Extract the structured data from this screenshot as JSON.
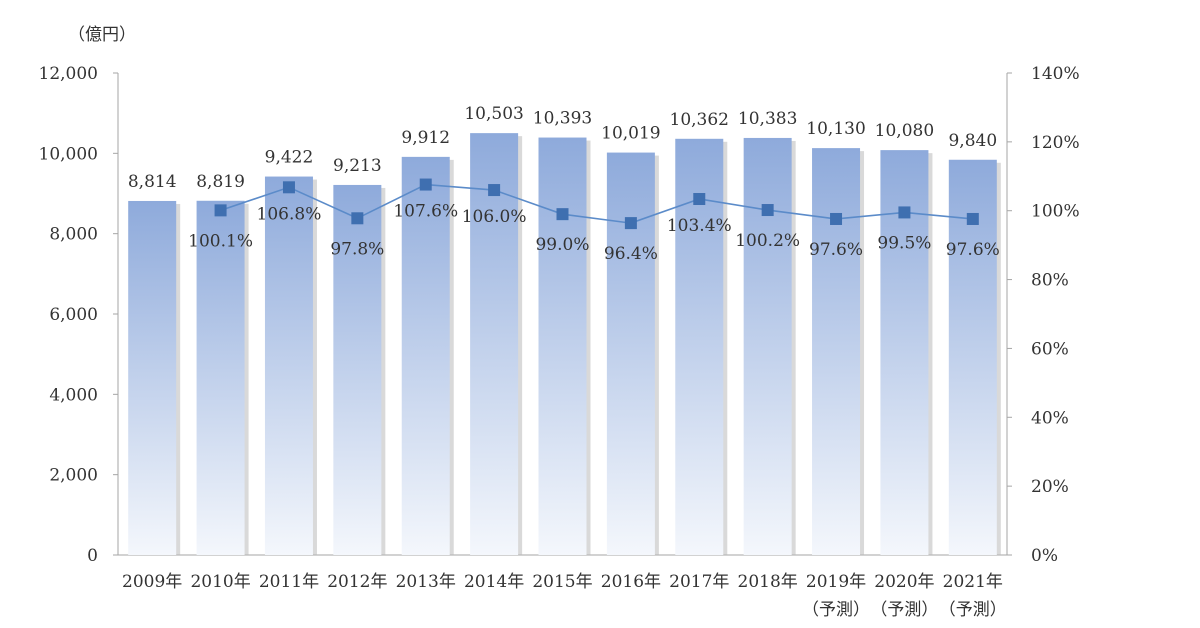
{
  "chart_data": {
    "type": "bar",
    "unit_label": "（億円）",
    "categories": [
      "2009年",
      "2010年",
      "2011年",
      "2012年",
      "2013年",
      "2014年",
      "2015年",
      "2016年",
      "2017年",
      "2018年",
      "2019年",
      "2020年",
      "2021年"
    ],
    "category_notes": [
      "",
      "",
      "",
      "",
      "",
      "",
      "",
      "",
      "",
      "",
      "（予測）",
      "（予測）",
      "（予測）"
    ],
    "bar_labels": [
      "8,814",
      "8,819",
      "9,422",
      "9,213",
      "9,912",
      "10,503",
      "10,393",
      "10,019",
      "10,362",
      "10,383",
      "10,130",
      "10,080",
      "9,840"
    ],
    "line_labels": [
      "",
      "100.1%",
      "106.8%",
      "97.8%",
      "107.6%",
      "106.0%",
      "99.0%",
      "96.4%",
      "103.4%",
      "100.2%",
      "97.6%",
      "99.5%",
      "97.6%"
    ],
    "series": [
      {
        "type": "bar",
        "axis": "left",
        "values": [
          8814,
          8819,
          9422,
          9213,
          9912,
          10503,
          10393,
          10019,
          10362,
          10383,
          10130,
          10080,
          9840
        ]
      },
      {
        "type": "line",
        "axis": "right",
        "values": [
          null,
          100.1,
          106.8,
          97.8,
          107.6,
          106.0,
          99.0,
          96.4,
          103.4,
          100.2,
          97.6,
          99.5,
          97.6
        ]
      }
    ],
    "y_left": {
      "ylim": [
        0,
        12000
      ],
      "ticks": [
        "0",
        "2,000",
        "4,000",
        "6,000",
        "8,000",
        "10,000",
        "12,000"
      ]
    },
    "y_right": {
      "ylim": [
        0,
        140
      ],
      "ticks": [
        "0%",
        "20%",
        "40%",
        "60%",
        "80%",
        "100%",
        "120%",
        "140%"
      ]
    },
    "grid": false,
    "legend": "none",
    "colors": {
      "bar_top": "#8eaadb",
      "bar_bottom": "#f4f7fc",
      "bar_shadow": "#b9b9b9",
      "line": "#5b8bc9",
      "marker": "#3f6fb0",
      "axis": "#a6a6a6"
    }
  }
}
